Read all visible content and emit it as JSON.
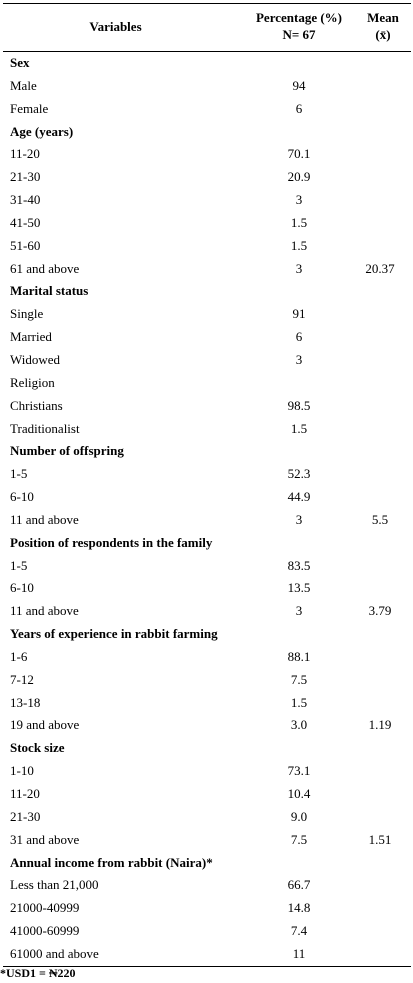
{
  "table": {
    "headers": {
      "variables": "Variables",
      "percentage_line1": "Percentage (%)",
      "percentage_line2": "N= 67",
      "mean_line1": "Mean",
      "mean_line2": "(x̄)"
    },
    "rows": [
      {
        "type": "section",
        "variable": "Sex",
        "percentage": "",
        "mean": ""
      },
      {
        "type": "item",
        "variable": "Male",
        "percentage": "94",
        "mean": ""
      },
      {
        "type": "item",
        "variable": "Female",
        "percentage": "6",
        "mean": ""
      },
      {
        "type": "section",
        "variable": "Age (years)",
        "percentage": "",
        "mean": ""
      },
      {
        "type": "item",
        "variable": "11-20",
        "percentage": "70.1",
        "mean": ""
      },
      {
        "type": "item",
        "variable": "21-30",
        "percentage": "20.9",
        "mean": ""
      },
      {
        "type": "item",
        "variable": "31-40",
        "percentage": "3",
        "mean": ""
      },
      {
        "type": "item",
        "variable": "41-50",
        "percentage": "1.5",
        "mean": ""
      },
      {
        "type": "item",
        "variable": "51-60",
        "percentage": "1.5",
        "mean": ""
      },
      {
        "type": "item",
        "variable": "61 and above",
        "percentage": "3",
        "mean": "20.37"
      },
      {
        "type": "section",
        "variable": "Marital status",
        "percentage": "",
        "mean": ""
      },
      {
        "type": "item",
        "variable": "Single",
        "percentage": "91",
        "mean": ""
      },
      {
        "type": "item",
        "variable": "Married",
        "percentage": "6",
        "mean": ""
      },
      {
        "type": "item",
        "variable": "Widowed",
        "percentage": "3",
        "mean": ""
      },
      {
        "type": "item",
        "variable": "Religion",
        "percentage": "",
        "mean": ""
      },
      {
        "type": "item",
        "variable": "Christians",
        "percentage": "98.5",
        "mean": ""
      },
      {
        "type": "item",
        "variable": "Traditionalist",
        "percentage": "1.5",
        "mean": ""
      },
      {
        "type": "section",
        "variable": "Number of offspring",
        "percentage": "",
        "mean": ""
      },
      {
        "type": "item",
        "variable": "1-5",
        "percentage": "52.3",
        "mean": ""
      },
      {
        "type": "item",
        "variable": "6-10",
        "percentage": "44.9",
        "mean": ""
      },
      {
        "type": "item",
        "variable": "11 and above",
        "percentage": "3",
        "mean": "5.5"
      },
      {
        "type": "section",
        "variable": "Position of respondents in the family",
        "percentage": "",
        "mean": ""
      },
      {
        "type": "item",
        "variable": "1-5",
        "percentage": "83.5",
        "mean": ""
      },
      {
        "type": "item",
        "variable": "6-10",
        "percentage": "13.5",
        "mean": ""
      },
      {
        "type": "item",
        "variable": "11 and above",
        "percentage": "3",
        "mean": "3.79"
      },
      {
        "type": "section",
        "variable": "Years of experience in rabbit farming",
        "percentage": "",
        "mean": ""
      },
      {
        "type": "item",
        "variable": "1-6",
        "percentage": "88.1",
        "mean": ""
      },
      {
        "type": "item",
        "variable": "7-12",
        "percentage": "7.5",
        "mean": ""
      },
      {
        "type": "item",
        "variable": "13-18",
        "percentage": "1.5",
        "mean": ""
      },
      {
        "type": "item",
        "variable": "19 and above",
        "percentage": "3.0",
        "mean": "1.19"
      },
      {
        "type": "section",
        "variable": "Stock size",
        "percentage": "",
        "mean": ""
      },
      {
        "type": "item",
        "variable": "1-10",
        "percentage": "73.1",
        "mean": ""
      },
      {
        "type": "item",
        "variable": "11-20",
        "percentage": "10.4",
        "mean": ""
      },
      {
        "type": "item",
        "variable": "21-30",
        "percentage": "9.0",
        "mean": ""
      },
      {
        "type": "item",
        "variable": "31 and above",
        "percentage": "7.5",
        "mean": "1.51"
      },
      {
        "type": "section",
        "variable": "Annual income from rabbit (Naira)*",
        "percentage": "",
        "mean": ""
      },
      {
        "type": "item",
        "variable": "Less than 21,000",
        "percentage": "66.7",
        "mean": ""
      },
      {
        "type": "item",
        "variable": "21000-40999",
        "percentage": "14.8",
        "mean": ""
      },
      {
        "type": "item",
        "variable": "41000-60999",
        "percentage": "7.4",
        "mean": ""
      },
      {
        "type": "item",
        "variable": "61000 and above",
        "percentage": "11",
        "mean": ""
      }
    ]
  },
  "footnote": "*USD1 = ₦220"
}
